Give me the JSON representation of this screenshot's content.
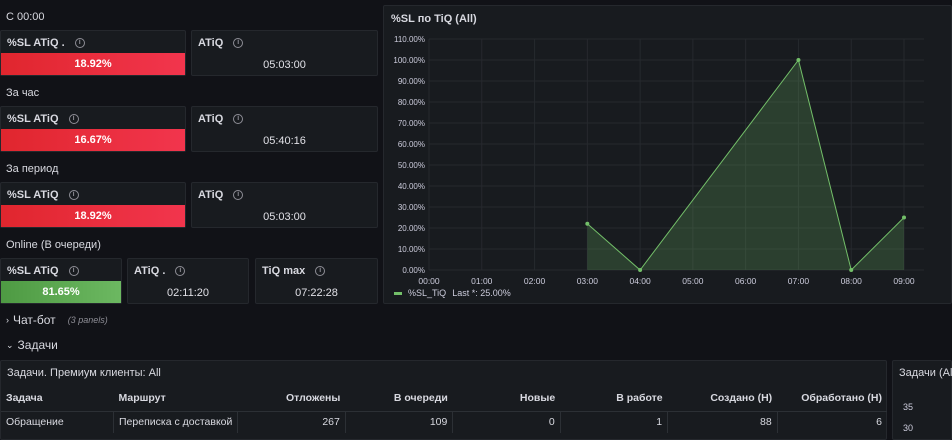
{
  "sections": {
    "since_midnight": "С 00:00",
    "per_hour": "За час",
    "per_period": "За период",
    "online": "Online (В очереди)"
  },
  "stats": {
    "row1": {
      "sl_title": "%SL ATiQ .",
      "sl_value": "18.92%",
      "atiq_title": "ATiQ",
      "atiq_value": "05:03:00"
    },
    "row2": {
      "sl_title": "%SL ATiQ",
      "sl_value": "16.67%",
      "atiq_title": "ATiQ",
      "atiq_value": "05:40:16"
    },
    "row3": {
      "sl_title": "%SL ATiQ",
      "sl_value": "18.92%",
      "atiq_title": "ATiQ",
      "atiq_value": "05:03:00"
    },
    "row4": {
      "sl_title": "%SL ATiQ",
      "sl_value": "81.65%",
      "atiq_title": "ATiQ .",
      "atiq_value": "02:11:20",
      "tiqmax_title": "TiQ max",
      "tiqmax_value": "07:22:28"
    }
  },
  "colors": {
    "red": "#e0262e",
    "green": "#56a64b",
    "series": "#73bf69"
  },
  "chart_panel": {
    "title": "%SL по TiQ (All)",
    "legend_name": "%SL_TiQ",
    "legend_stat": "Last *: 25.00%"
  },
  "chart_data": {
    "type": "area",
    "x": [
      "00:00",
      "01:00",
      "02:00",
      "03:00",
      "04:00",
      "05:00",
      "06:00",
      "07:00",
      "08:00",
      "09:00"
    ],
    "y_ticks": [
      "0.00%",
      "10.00%",
      "20.00%",
      "30.00%",
      "40.00%",
      "50.00%",
      "60.00%",
      "70.00%",
      "80.00%",
      "90.00%",
      "100.00%",
      "110.00%"
    ],
    "ylim": [
      0,
      110
    ],
    "series": [
      {
        "name": "%SL_TiQ",
        "points": [
          [
            "03:00",
            22
          ],
          [
            "04:00",
            0
          ],
          [
            "07:00",
            100
          ],
          [
            "08:00",
            0
          ],
          [
            "09:00",
            25
          ]
        ]
      }
    ],
    "grid": true,
    "legend": "bottom-left"
  },
  "rows": {
    "chatbot": "Чат-бот",
    "chatbot_sub": "(3 panels)",
    "tasks": "Задачи"
  },
  "tasks_panel": {
    "title": "Задачи. Премиум клиенты: All",
    "columns": [
      "Задача",
      "Маршрут",
      "Отложены",
      "В очереди",
      "Новые",
      "В работе",
      "Создано (Н)",
      "Обработано (Н)"
    ],
    "rows": [
      [
        "Обращение",
        "Переписка с доставкой",
        "267",
        "109",
        "0",
        "1",
        "88",
        "6"
      ]
    ]
  },
  "right_panel": {
    "title": "Задачи (All)",
    "ticks": [
      "35",
      "30"
    ]
  }
}
